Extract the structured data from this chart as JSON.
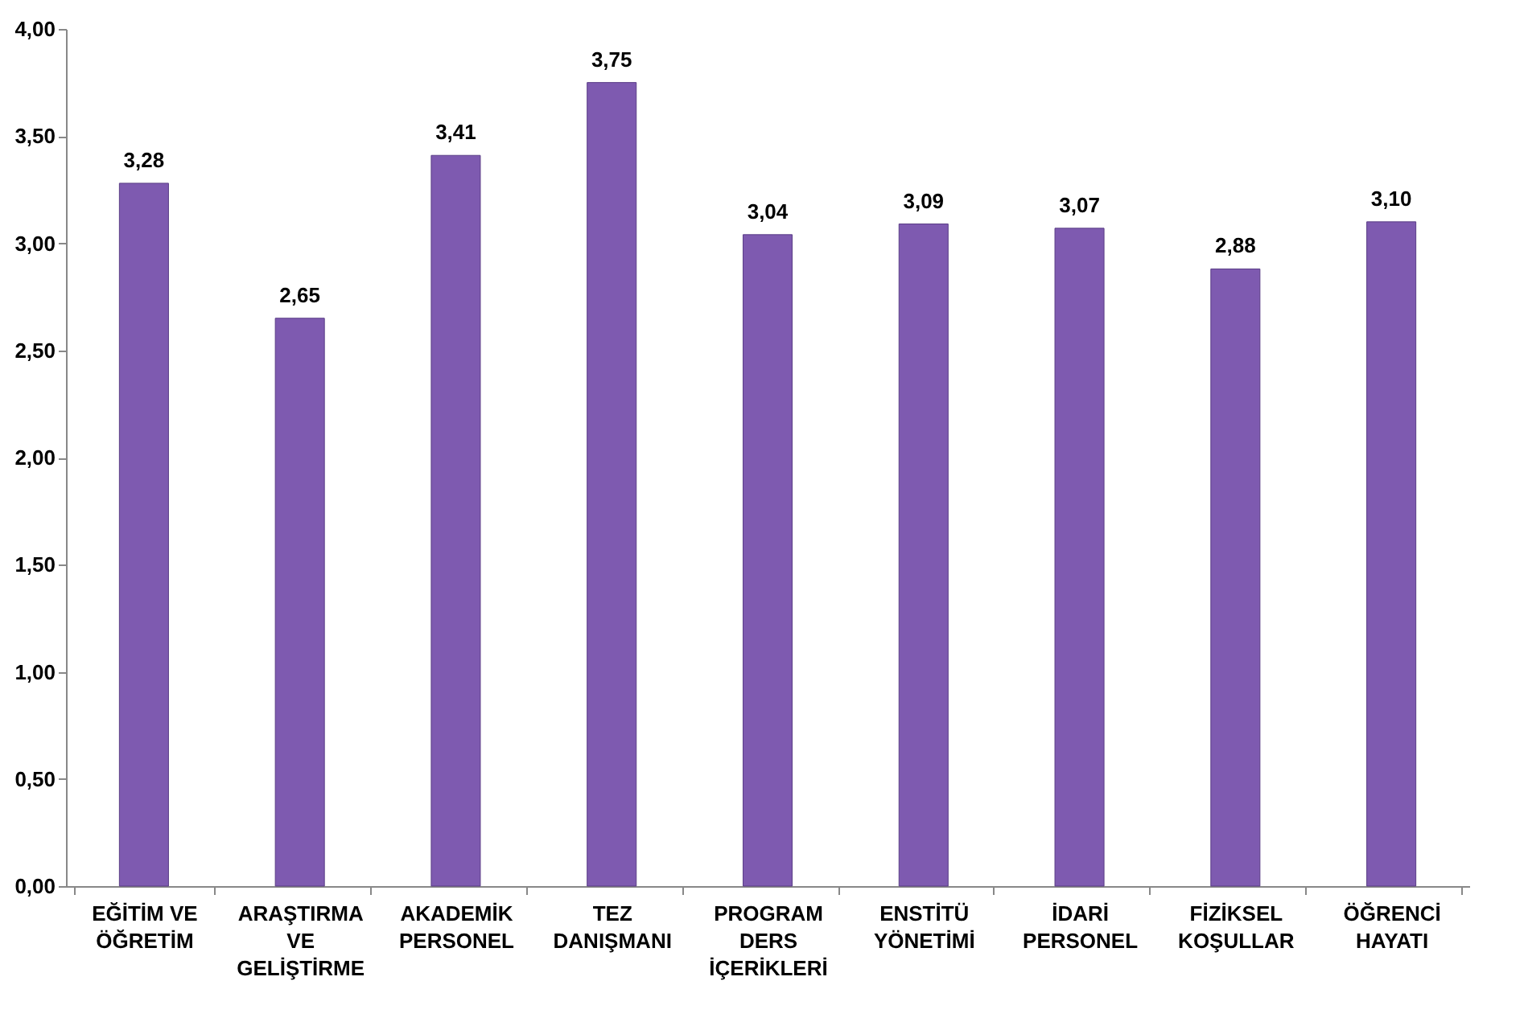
{
  "chart_data": {
    "type": "bar",
    "categories": [
      "EĞİTİM VE\nÖĞRETİM",
      "ARAŞTIRMA\nVE\nGELİŞTİRME",
      "AKADEMİK\nPERSONEL",
      "TEZ\nDANIŞMANI",
      "PROGRAM\nDERS\nİÇERİKLERİ",
      "ENSTİTÜ\nYÖNETİMİ",
      "İDARİ\nPERSONEL",
      "FİZİKSEL\nKOŞULLAR",
      "ÖĞRENCİ\nHAYATI"
    ],
    "values": [
      3.28,
      2.65,
      3.41,
      3.75,
      3.04,
      3.09,
      3.07,
      2.88,
      3.1
    ],
    "value_labels": [
      "3,28",
      "2,65",
      "3,41",
      "3,75",
      "3,04",
      "3,09",
      "3,07",
      "2,88",
      "3,10"
    ],
    "color": "#7e5ab0",
    "ylim": [
      0,
      4
    ],
    "yticks": [
      {
        "value": 0,
        "label": "0,00"
      },
      {
        "value": 0.5,
        "label": "0,50"
      },
      {
        "value": 1,
        "label": "1,00"
      },
      {
        "value": 1.5,
        "label": "1,50"
      },
      {
        "value": 2,
        "label": "2,00"
      },
      {
        "value": 2.5,
        "label": "2,50"
      },
      {
        "value": 3,
        "label": "3,00"
      },
      {
        "value": 3.5,
        "label": "3,50"
      },
      {
        "value": 4,
        "label": "4,00"
      }
    ],
    "grid": false
  }
}
